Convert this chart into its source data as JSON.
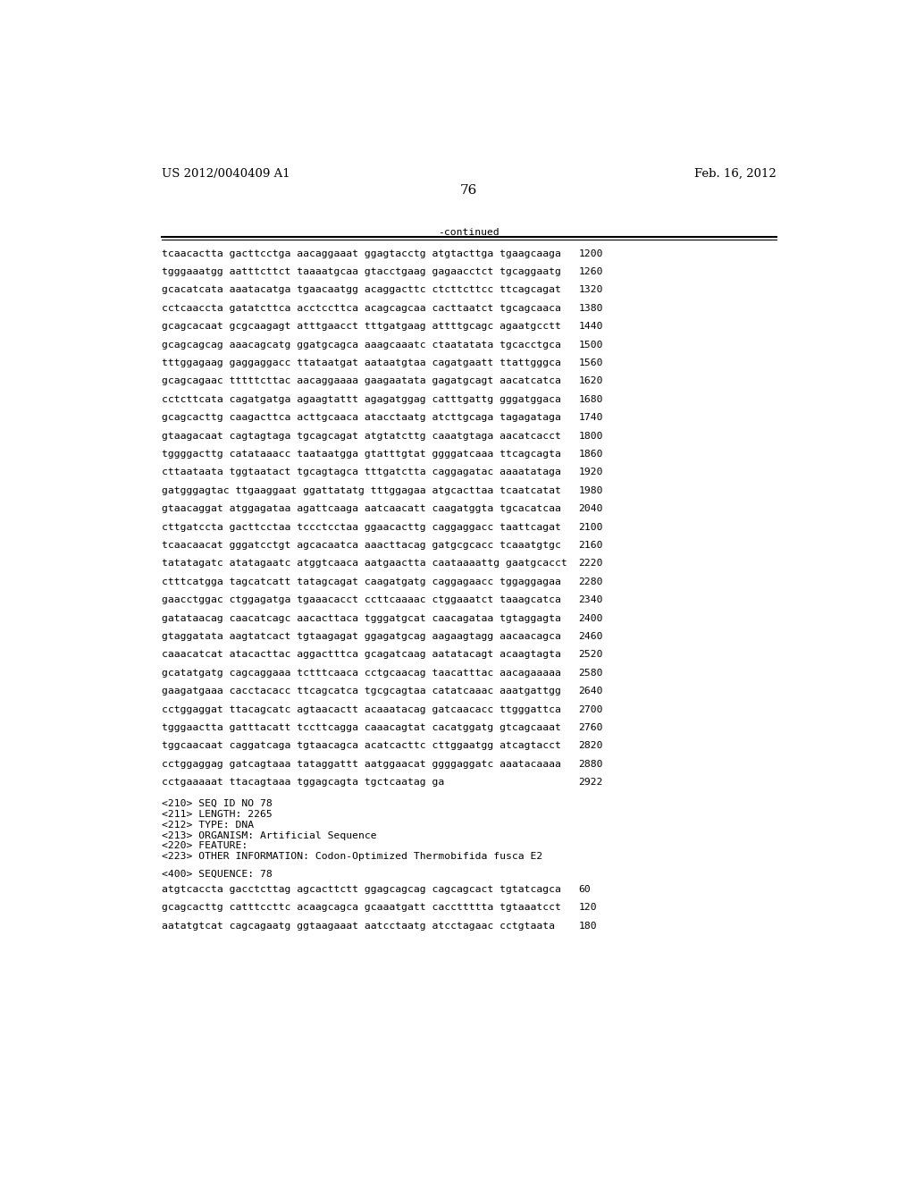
{
  "header_left": "US 2012/0040409 A1",
  "header_right": "Feb. 16, 2012",
  "page_number": "76",
  "continued_label": "-continued",
  "sequence_lines": [
    [
      "tcaacactta gacttcctga aacaggaaat ggagtacctg atgtacttga tgaagcaaga",
      "1200"
    ],
    [
      "tgggaaatgg aatttcttct taaaatgcaa gtacctgaag gagaacctct tgcaggaatg",
      "1260"
    ],
    [
      "gcacatcata aaatacatga tgaacaatgg acaggacttc ctcttcttcc ttcagcagat",
      "1320"
    ],
    [
      "cctcaaccta gatatcttca acctccttca acagcagcaa cacttaatct tgcagcaaca",
      "1380"
    ],
    [
      "gcagcacaat gcgcaagagt atttgaacct tttgatgaag attttgcagc agaatgcctt",
      "1440"
    ],
    [
      "gcagcagcag aaacagcatg ggatgcagca aaagcaaatc ctaatatata tgcacctgca",
      "1500"
    ],
    [
      "tttggagaag gaggaggacc ttataatgat aataatgtaa cagatgaatt ttattgggca",
      "1560"
    ],
    [
      "gcagcagaac tttttcttac aacaggaaaa gaagaatata gagatgcagt aacatcatca",
      "1620"
    ],
    [
      "cctcttcata cagatgatga agaagtattt agagatggag catttgattg gggatggaca",
      "1680"
    ],
    [
      "gcagcacttg caagacttca acttgcaaca atacctaatg atcttgcaga tagagataga",
      "1740"
    ],
    [
      "gtaagacaat cagtagtaga tgcagcagat atgtatcttg caaatgtaga aacatcacct",
      "1800"
    ],
    [
      "tggggacttg catataaacc taataatgga gtatttgtat ggggatcaaa ttcagcagta",
      "1860"
    ],
    [
      "cttaataata tggtaatact tgcagtagca tttgatctta caggagatac aaaatataga",
      "1920"
    ],
    [
      "gatgggagtac ttgaaggaat ggattatatg tttggagaa atgcacttaa tcaatcatat",
      "1980"
    ],
    [
      "gtaacaggat atggagataa agattcaaga aatcaacatt caagatggta tgcacatcaa",
      "2040"
    ],
    [
      "cttgatccta gacttcctaa tccctcctaa ggaacacttg caggaggacc taattcagat",
      "2100"
    ],
    [
      "tcaacaacat gggatcctgt agcacaatca aaacttacag gatgcgcacc tcaaatgtgc",
      "2160"
    ],
    [
      "tatatagatc atatagaatc atggtcaaca aatgaactta caataaaattg gaatgcacct",
      "2220"
    ],
    [
      "ctttcatgga tagcatcatt tatagcagat caagatgatg caggagaacc tggaggagaa",
      "2280"
    ],
    [
      "gaacctggac ctggagatga tgaaacacct ccttcaaaac ctggaaatct taaagcatca",
      "2340"
    ],
    [
      "gatataacag caacatcagc aacacttaca tgggatgcat caacagataa tgtaggagta",
      "2400"
    ],
    [
      "gtaggatata aagtatcact tgtaagagat ggagatgcag aagaagtagg aacaacagca",
      "2460"
    ],
    [
      "caaacatcat atacacttac aggactttca gcagatcaag aatatacagt acaagtagta",
      "2520"
    ],
    [
      "gcatatgatg cagcaggaaa tctttcaaca cctgcaacag taacatttac aacagaaaaa",
      "2580"
    ],
    [
      "gaagatgaaa cacctacacc ttcagcatca tgcgcagtaa catatcaaac aaatgattgg",
      "2640"
    ],
    [
      "cctggaggat ttacagcatc agtaacactt acaaatacag gatcaacacc ttgggattca",
      "2700"
    ],
    [
      "tgggaactta gatttacatt tccttcagga caaacagtat cacatggatg gtcagcaaat",
      "2760"
    ],
    [
      "tggcaacaat caggatcaga tgtaacagca acatcacttc cttggaatgg atcagtacct",
      "2820"
    ],
    [
      "cctggaggag gatcagtaaa tataggattt aatggaacat ggggaggatc aaatacaaaa",
      "2880"
    ],
    [
      "cctgaaaaat ttacagtaaa tggagcagta tgctcaatag ga",
      "2922"
    ]
  ],
  "metadata_lines": [
    "<210> SEQ ID NO 78",
    "<211> LENGTH: 2265",
    "<212> TYPE: DNA",
    "<213> ORGANISM: Artificial Sequence",
    "<220> FEATURE:",
    "<223> OTHER INFORMATION: Codon-Optimized Thermobifida fusca E2"
  ],
  "sequence_header": "<400> SEQUENCE: 78",
  "sequence_lines2": [
    [
      "atgtcaccta gacctcttag agcacttctt ggagcagcag cagcagcact tgtatcagca",
      "60"
    ],
    [
      "gcagcacttg catttccttc acaagcagca gcaaatgatt caccttttta tgtaaatcct",
      "120"
    ],
    [
      "aatatgtcat cagcagaatg ggtaagaaat aatcctaatg atcctagaac cctgtaata",
      "180"
    ]
  ],
  "bg_color": "#ffffff",
  "text_color": "#000000",
  "body_fontsize": 8.2,
  "header_fontsize": 9.5,
  "page_num_fontsize": 11
}
